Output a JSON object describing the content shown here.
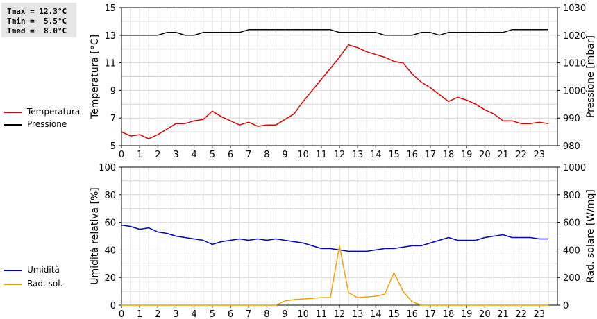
{
  "stats": {
    "tmax": "Tmax = 12.3°C",
    "tmin": "Tmin =  5.5°C",
    "tmed": "Tmed =  8.0°C"
  },
  "legend_top": [
    {
      "label": "Temperatura",
      "color": "#dd0000"
    },
    {
      "label": "Pressione",
      "color": "#000000"
    }
  ],
  "legend_bottom": [
    {
      "label": "Umidità",
      "color": "#0000bb"
    },
    {
      "label": "Rad. sol.",
      "color": "#f0a000"
    }
  ],
  "chart_data": [
    {
      "type": "line",
      "ylabel": "Temperatura [°C]",
      "y2label": "Pressione [mbar]",
      "xlim": [
        0,
        24
      ],
      "ylim": [
        5,
        15
      ],
      "y2lim": [
        980,
        1030
      ],
      "x_ticks": [
        0,
        1,
        2,
        3,
        4,
        5,
        6,
        7,
        8,
        9,
        10,
        11,
        12,
        13,
        14,
        15,
        16,
        17,
        18,
        19,
        20,
        21,
        22,
        23
      ],
      "y_ticks": [
        5,
        7,
        9,
        11,
        13,
        15
      ],
      "y2_ticks": [
        980,
        990,
        1000,
        1010,
        1020,
        1030
      ],
      "grid": true,
      "series": [
        {
          "name": "Temperatura",
          "axis": "left",
          "color": "#dd0000",
          "x": [
            0,
            0.5,
            1,
            1.5,
            2,
            2.5,
            3,
            3.5,
            4,
            4.5,
            5,
            5.5,
            6,
            6.5,
            7,
            7.5,
            8,
            8.5,
            9,
            9.5,
            10,
            10.5,
            11,
            11.5,
            12,
            12.5,
            13,
            13.5,
            14,
            14.5,
            15,
            15.5,
            16,
            16.5,
            17,
            17.5,
            18,
            18.5,
            19,
            19.5,
            20,
            20.5,
            21,
            21.5,
            22,
            22.5,
            23,
            23.5
          ],
          "y": [
            6.0,
            5.7,
            5.8,
            5.5,
            5.8,
            6.2,
            6.6,
            6.6,
            6.8,
            6.9,
            7.5,
            7.1,
            6.8,
            6.5,
            6.7,
            6.4,
            6.5,
            6.5,
            6.9,
            7.3,
            8.2,
            9.0,
            9.8,
            10.6,
            11.4,
            12.3,
            12.1,
            11.8,
            11.6,
            11.4,
            11.1,
            11.0,
            10.2,
            9.6,
            9.2,
            8.7,
            8.2,
            8.5,
            8.3,
            8.0,
            7.6,
            7.3,
            6.8,
            6.8,
            6.6,
            6.6,
            6.7,
            6.6
          ]
        },
        {
          "name": "Pressione",
          "axis": "right",
          "color": "#000000",
          "x": [
            0,
            0.5,
            1,
            1.5,
            2,
            2.5,
            3,
            3.5,
            4,
            4.5,
            5,
            5.5,
            6,
            6.5,
            7,
            7.5,
            8,
            8.5,
            9,
            9.5,
            10,
            10.5,
            11,
            11.5,
            12,
            12.5,
            13,
            13.5,
            14,
            14.5,
            15,
            15.5,
            16,
            16.5,
            17,
            17.5,
            18,
            18.5,
            19,
            19.5,
            20,
            20.5,
            21,
            21.5,
            22,
            22.5,
            23,
            23.5
          ],
          "y": [
            1020,
            1020,
            1020,
            1020,
            1020,
            1021,
            1021,
            1020,
            1020,
            1021,
            1021,
            1021,
            1021,
            1021,
            1022,
            1022,
            1022,
            1022,
            1022,
            1022,
            1022,
            1022,
            1022,
            1022,
            1021,
            1021,
            1021,
            1021,
            1021,
            1020,
            1020,
            1020,
            1020,
            1021,
            1021,
            1020,
            1021,
            1021,
            1021,
            1021,
            1021,
            1021,
            1021,
            1022,
            1022,
            1022,
            1022,
            1022
          ]
        }
      ]
    },
    {
      "type": "line",
      "ylabel": "Umidità relativa [%]",
      "y2label": "Rad. solare [W/mq]",
      "xlim": [
        0,
        24
      ],
      "ylim": [
        0,
        100
      ],
      "y2lim": [
        0,
        1000
      ],
      "x_ticks": [
        0,
        1,
        2,
        3,
        4,
        5,
        6,
        7,
        8,
        9,
        10,
        11,
        12,
        13,
        14,
        15,
        16,
        17,
        18,
        19,
        20,
        21,
        22,
        23
      ],
      "y_ticks": [
        0,
        20,
        40,
        60,
        80,
        100
      ],
      "y2_ticks": [
        0,
        200,
        400,
        600,
        800,
        1000
      ],
      "grid": true,
      "series": [
        {
          "name": "Umidità",
          "axis": "left",
          "color": "#0000bb",
          "x": [
            0,
            0.5,
            1,
            1.5,
            2,
            2.5,
            3,
            3.5,
            4,
            4.5,
            5,
            5.5,
            6,
            6.5,
            7,
            7.5,
            8,
            8.5,
            9,
            9.5,
            10,
            10.5,
            11,
            11.5,
            12,
            12.5,
            13,
            13.5,
            14,
            14.5,
            15,
            15.5,
            16,
            16.5,
            17,
            17.5,
            18,
            18.5,
            19,
            19.5,
            20,
            20.5,
            21,
            21.5,
            22,
            22.5,
            23,
            23.5
          ],
          "y": [
            58,
            57,
            55,
            56,
            53,
            52,
            50,
            49,
            48,
            47,
            44,
            46,
            47,
            48,
            47,
            48,
            47,
            48,
            47,
            46,
            45,
            43,
            41,
            41,
            40,
            39,
            39,
            39,
            40,
            41,
            41,
            42,
            43,
            43,
            45,
            47,
            49,
            47,
            47,
            47,
            49,
            50,
            51,
            49,
            49,
            49,
            48,
            48
          ]
        },
        {
          "name": "Rad. sol.",
          "axis": "right",
          "color": "#f0a000",
          "x": [
            0,
            0.5,
            1,
            1.5,
            2,
            2.5,
            3,
            3.5,
            4,
            4.5,
            5,
            5.5,
            6,
            6.5,
            7,
            7.5,
            8,
            8.5,
            9,
            9.5,
            10,
            10.5,
            11,
            11.5,
            12,
            12.5,
            13,
            13.5,
            14,
            14.5,
            15,
            15.5,
            16,
            16.5,
            17,
            17.5,
            18,
            18.5,
            19,
            19.5,
            20,
            20.5,
            21,
            21.5,
            22,
            22.5,
            23,
            23.5
          ],
          "y": [
            0,
            0,
            0,
            0,
            0,
            0,
            0,
            0,
            0,
            0,
            0,
            0,
            0,
            0,
            0,
            0,
            0,
            0,
            30,
            40,
            45,
            50,
            55,
            55,
            430,
            90,
            55,
            60,
            65,
            80,
            235,
            100,
            25,
            0,
            0,
            0,
            0,
            0,
            0,
            0,
            0,
            0,
            0,
            0,
            0,
            0,
            0,
            0
          ]
        }
      ]
    }
  ]
}
